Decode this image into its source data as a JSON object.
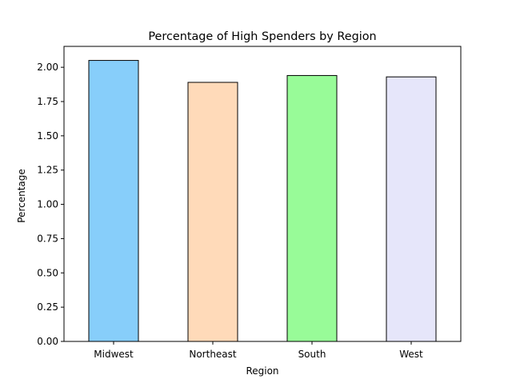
{
  "chart_data": {
    "type": "bar",
    "title": "Percentage of High Spenders by Region",
    "xlabel": "Region",
    "ylabel": "Percentage",
    "categories": [
      "Midwest",
      "Northeast",
      "South",
      "West"
    ],
    "values": [
      2.05,
      1.89,
      1.94,
      1.93
    ],
    "bar_colors": [
      "#87CEFA",
      "#FFDAB9",
      "#98FB98",
      "#E6E6FA"
    ],
    "edge_color": "#000000",
    "ylim": [
      0,
      2.1525
    ],
    "yticks": [
      "0.00",
      "0.25",
      "0.50",
      "0.75",
      "1.00",
      "1.25",
      "1.50",
      "1.75",
      "2.00"
    ],
    "grid": false,
    "legend": "none"
  }
}
